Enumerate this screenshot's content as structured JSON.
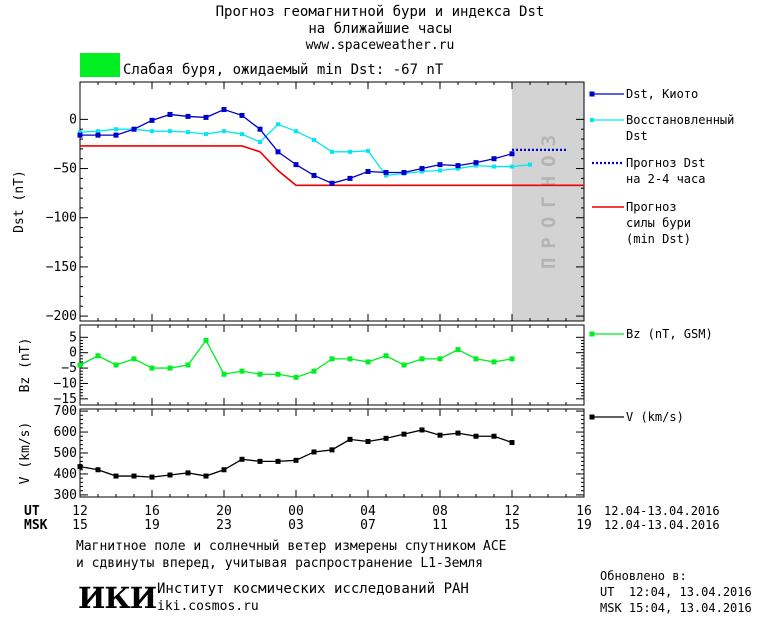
{
  "header": {
    "title_line1": "Прогноз геомагнитной бури и индекса Dst",
    "title_line2": "на ближайшие часы",
    "url": "www.spaceweather.ru"
  },
  "status": {
    "color": "#00ee22",
    "text": "Слабая буря, ожидаемый min Dst: -67 nT"
  },
  "forecast_zone_label": "ПРОГНОЗ",
  "colors": {
    "dst_kyoto": "#0000cc",
    "dst_restored": "#00e8f0",
    "dst_forecast": "#0000cc",
    "storm_forecast": "#ee0000",
    "bz": "#00ee22",
    "v": "#000000",
    "forecast_zone": "#d3d3d3"
  },
  "legend": {
    "dst_kyoto": "Dst, Киото",
    "restored_1": "Восстановленный",
    "restored_2": "Dst",
    "forecast_1": "Прогноз Dst",
    "forecast_2": "на 2-4 часа",
    "storm_1": "Прогноз",
    "storm_2": "силы бури",
    "storm_3": "(min Dst)",
    "bz": "Bz (nT, GSM)",
    "v": "V (km/s)"
  },
  "time_axis": {
    "ut_label": "UT",
    "msk_label": "MSK",
    "ut_ticks": [
      "12",
      "16",
      "20",
      "00",
      "04",
      "08",
      "12",
      "16"
    ],
    "msk_ticks": [
      "15",
      "19",
      "23",
      "03",
      "07",
      "11",
      "15",
      "19"
    ],
    "ut_range": "12.04-13.04.2016",
    "msk_range": "12.04-13.04.2016"
  },
  "footer": {
    "note_line1": "Магнитное поле и солнечный ветер измерены спутником ACE",
    "note_line2": "и сдвинуты вперед, учитывая распространение L1-Земля",
    "logo": "ИКИ",
    "institute": "Институт космических исследований РАН",
    "site": "iki.cosmos.ru",
    "updated_label": "Обновлено в:",
    "updated_ut": "UT  12:04, 13.04.2016",
    "updated_msk": "MSK 15:04, 13.04.2016"
  },
  "chart_data": [
    {
      "type": "line",
      "ylabel": "Dst (nT)",
      "xlim": [
        0,
        28
      ],
      "ylim": [
        -205,
        38
      ],
      "yticks": [
        0,
        -50,
        -100,
        -150,
        -200
      ],
      "forecast_zone": [
        24,
        28
      ],
      "series": [
        {
          "name": "Dst, Киото",
          "x": [
            0,
            1,
            2,
            3,
            4,
            5,
            6,
            7,
            8,
            9,
            10,
            11,
            12,
            13,
            14,
            15,
            16,
            17,
            18,
            19,
            20,
            21,
            22,
            23,
            24
          ],
          "values": [
            -16,
            -16,
            -16,
            -10,
            -1,
            5,
            3,
            2,
            10,
            4,
            -10,
            -33,
            -46,
            -57,
            -65,
            -60,
            -53,
            -54,
            -54,
            -50,
            -46,
            -47,
            -44,
            -40,
            -35
          ]
        },
        {
          "name": "Восстановленный Dst",
          "x": [
            0,
            1,
            2,
            3,
            4,
            5,
            6,
            7,
            8,
            9,
            10,
            11,
            12,
            13,
            14,
            15,
            16,
            17,
            18,
            19,
            20,
            21,
            22,
            23,
            24,
            25
          ],
          "values": [
            -13,
            -12,
            -10,
            -10,
            -12,
            -12,
            -13,
            -15,
            -12,
            -15,
            -23,
            -5,
            -12,
            -21,
            -33,
            -33,
            -32,
            -57,
            -55,
            -53,
            -52,
            -50,
            -47,
            -48,
            -48,
            -46
          ]
        },
        {
          "name": "Прогноз Dst на 2-4 часа",
          "x": [
            24,
            25,
            26,
            27
          ],
          "values": [
            -31,
            -31,
            -31,
            -31
          ]
        },
        {
          "name": "Прогноз силы бури (min Dst)",
          "x": [
            0,
            9,
            10,
            11,
            12,
            28
          ],
          "values": [
            -27,
            -27,
            -33,
            -52,
            -67,
            -67
          ]
        }
      ]
    },
    {
      "type": "line",
      "ylabel": "Bz (nT)",
      "xlim": [
        0,
        28
      ],
      "ylim": [
        -17,
        9
      ],
      "yticks": [
        5,
        0,
        -5,
        -10,
        -15
      ],
      "series": [
        {
          "name": "Bz (nT, GSM)",
          "x": [
            0,
            1,
            2,
            3,
            4,
            5,
            6,
            7,
            8,
            9,
            10,
            11,
            12,
            13,
            14,
            15,
            16,
            17,
            18,
            19,
            20,
            21,
            22,
            23,
            24,
            25
          ],
          "values": [
            -4,
            -1,
            -4,
            -2,
            -5,
            -5,
            -4,
            4,
            -7,
            -6,
            -7,
            -7,
            -8,
            -6,
            -2,
            -2,
            -3,
            -1,
            -4,
            -2,
            -2,
            1,
            -2,
            -3,
            -2,
            null
          ]
        }
      ]
    },
    {
      "type": "line",
      "ylabel": "V (km/s)",
      "xlim": [
        0,
        28
      ],
      "ylim": [
        290,
        710
      ],
      "yticks": [
        700,
        600,
        500,
        400,
        300
      ],
      "series": [
        {
          "name": "V (km/s)",
          "x": [
            0,
            1,
            2,
            3,
            4,
            5,
            6,
            7,
            8,
            9,
            10,
            11,
            12,
            13,
            14,
            15,
            16,
            17,
            18,
            19,
            20,
            21,
            22,
            23,
            24,
            25
          ],
          "values": [
            435,
            420,
            390,
            390,
            385,
            395,
            405,
            390,
            420,
            470,
            460,
            460,
            465,
            505,
            515,
            565,
            555,
            570,
            590,
            610,
            585,
            595,
            580,
            580,
            550,
            null
          ]
        }
      ]
    }
  ]
}
